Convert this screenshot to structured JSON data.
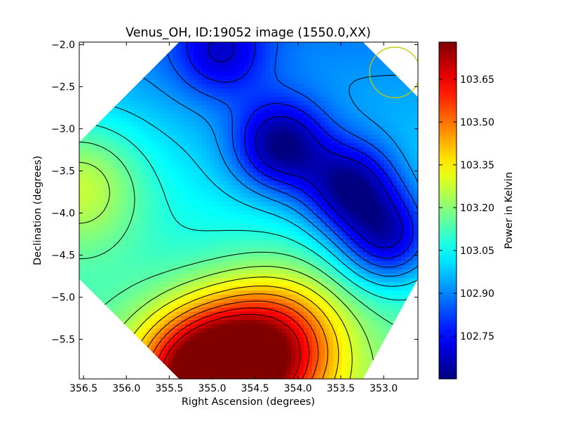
{
  "chart_data": {
    "type": "heatmap",
    "title": "Venus_OH, ID:19052 image (1550.0,XX)",
    "xlabel": "Right Ascension (degrees)",
    "ylabel": "Declination (degrees)",
    "xlim": [
      356.55,
      352.6
    ],
    "ylim": [
      -5.97,
      -1.97
    ],
    "x_ticks": [
      "356.5",
      "356.0",
      "355.5",
      "355.0",
      "354.5",
      "354.0",
      "353.5",
      "353.0"
    ],
    "x_tick_values": [
      356.5,
      356.0,
      355.5,
      355.0,
      354.5,
      354.0,
      353.5,
      353.0
    ],
    "y_ticks": [
      "−2.0",
      "−2.5",
      "−3.0",
      "−3.5",
      "−4.0",
      "−4.5",
      "−5.0",
      "−5.5"
    ],
    "y_tick_values": [
      -2.0,
      -2.5,
      -3.0,
      -3.5,
      -4.0,
      -4.5,
      -5.0,
      -5.5
    ],
    "colormap": "jet",
    "colorbar": {
      "label": "Power in Kelvin",
      "range": [
        102.6,
        103.78
      ],
      "ticks": [
        "103.65",
        "103.50",
        "103.35",
        "103.20",
        "103.05",
        "102.90",
        "102.75"
      ],
      "tick_values": [
        103.65,
        103.5,
        103.35,
        103.2,
        103.05,
        102.9,
        102.75
      ]
    },
    "field": {
      "background_level": 103.0,
      "features": [
        {
          "kind": "peak",
          "ra": 355.05,
          "dec": -5.95,
          "level": 103.78
        },
        {
          "kind": "peak",
          "ra": 354.25,
          "dec": -5.55,
          "level": 103.48
        },
        {
          "kind": "peak",
          "ra": 356.55,
          "dec": -3.65,
          "level": 103.25
        },
        {
          "kind": "trough",
          "ra": 354.2,
          "dec": -3.2,
          "level": 102.62
        },
        {
          "kind": "trough",
          "ra": 353.4,
          "dec": -3.7,
          "level": 102.62
        },
        {
          "kind": "trough",
          "ra": 352.95,
          "dec": -4.3,
          "level": 102.64
        },
        {
          "kind": "trough",
          "ra": 354.9,
          "dec": -2.1,
          "level": 102.78
        }
      ]
    },
    "marker": {
      "kind": "circle",
      "color": "#c8c800",
      "ra": 352.87,
      "dec": -2.33,
      "radius_deg": 0.3
    },
    "contours": true,
    "grid": false
  }
}
